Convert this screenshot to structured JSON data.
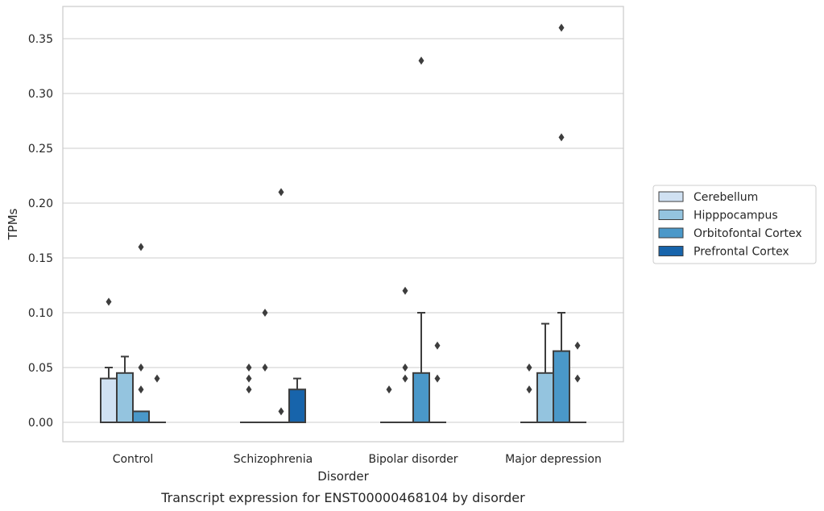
{
  "chart_data": {
    "type": "box",
    "caption": "Transcript expression for ENST00000468104 by disorder",
    "xlabel": "Disorder",
    "ylabel": "TPMs",
    "ylim": [
      -0.018,
      0.378
    ],
    "yticks": [
      0.0,
      0.05,
      0.1,
      0.15,
      0.2,
      0.25,
      0.3,
      0.35
    ],
    "ytick_labels": [
      "0.00",
      "0.05",
      "0.10",
      "0.15",
      "0.20",
      "0.25",
      "0.30",
      "0.35"
    ],
    "grid": "horizontal",
    "legend_position": "right",
    "categories": [
      "Control",
      "Schizophrenia",
      "Bipolar disorder",
      "Major depression"
    ],
    "series": [
      {
        "name": "Cerebellum",
        "color": "#d0e1f2",
        "boxes": [
          {
            "q1": 0.0,
            "median": 0.0,
            "q3": 0.04,
            "whisker_low": 0.0,
            "whisker_high": 0.05,
            "outliers": [
              0.11
            ]
          },
          {
            "q1": 0.0,
            "median": 0.0,
            "q3": 0.0,
            "whisker_low": 0.0,
            "whisker_high": 0.0,
            "outliers": [
              0.03,
              0.04,
              0.05
            ]
          },
          {
            "q1": 0.0,
            "median": 0.0,
            "q3": 0.0,
            "whisker_low": 0.0,
            "whisker_high": 0.0,
            "outliers": [
              0.03
            ]
          },
          {
            "q1": 0.0,
            "median": 0.0,
            "q3": 0.0,
            "whisker_low": 0.0,
            "whisker_high": 0.0,
            "outliers": [
              0.03,
              0.05
            ]
          }
        ]
      },
      {
        "name": "Hipppocampus",
        "color": "#94c4df",
        "boxes": [
          {
            "q1": 0.0,
            "median": 0.0,
            "q3": 0.045,
            "whisker_low": 0.0,
            "whisker_high": 0.06,
            "outliers": []
          },
          {
            "q1": 0.0,
            "median": 0.0,
            "q3": 0.0,
            "whisker_low": 0.0,
            "whisker_high": 0.0,
            "outliers": [
              0.05,
              0.1
            ]
          },
          {
            "q1": 0.0,
            "median": 0.0,
            "q3": 0.0,
            "whisker_low": 0.0,
            "whisker_high": 0.0,
            "outliers": [
              0.04,
              0.05,
              0.12
            ]
          },
          {
            "q1": 0.0,
            "median": 0.0,
            "q3": 0.045,
            "whisker_low": 0.0,
            "whisker_high": 0.09,
            "outliers": []
          }
        ]
      },
      {
        "name": "Orbitofontal Cortex",
        "color": "#4a98c9",
        "boxes": [
          {
            "q1": 0.0,
            "median": 0.0,
            "q3": 0.01,
            "whisker_low": 0.0,
            "whisker_high": 0.01,
            "outliers": [
              0.03,
              0.05,
              0.16
            ]
          },
          {
            "q1": 0.0,
            "median": 0.0,
            "q3": 0.0,
            "whisker_low": 0.0,
            "whisker_high": 0.0,
            "outliers": [
              0.01,
              0.21
            ]
          },
          {
            "q1": 0.0,
            "median": 0.0,
            "q3": 0.045,
            "whisker_low": 0.0,
            "whisker_high": 0.1,
            "outliers": [
              0.33
            ]
          },
          {
            "q1": 0.0,
            "median": 0.0,
            "q3": 0.065,
            "whisker_low": 0.0,
            "whisker_high": 0.1,
            "outliers": [
              0.26,
              0.36
            ]
          }
        ]
      },
      {
        "name": "Prefrontal Cortex",
        "color": "#1764ab",
        "boxes": [
          {
            "q1": 0.0,
            "median": 0.0,
            "q3": 0.0,
            "whisker_low": 0.0,
            "whisker_high": 0.0,
            "outliers": [
              0.04
            ]
          },
          {
            "q1": 0.0,
            "median": 0.0,
            "q3": 0.03,
            "whisker_low": 0.0,
            "whisker_high": 0.04,
            "outliers": []
          },
          {
            "q1": 0.0,
            "median": 0.0,
            "q3": 0.0,
            "whisker_low": 0.0,
            "whisker_high": 0.0,
            "outliers": [
              0.04,
              0.07
            ]
          },
          {
            "q1": 0.0,
            "median": 0.0,
            "q3": 0.0,
            "whisker_low": 0.0,
            "whisker_high": 0.0,
            "outliers": [
              0.04,
              0.07
            ]
          }
        ]
      }
    ]
  }
}
